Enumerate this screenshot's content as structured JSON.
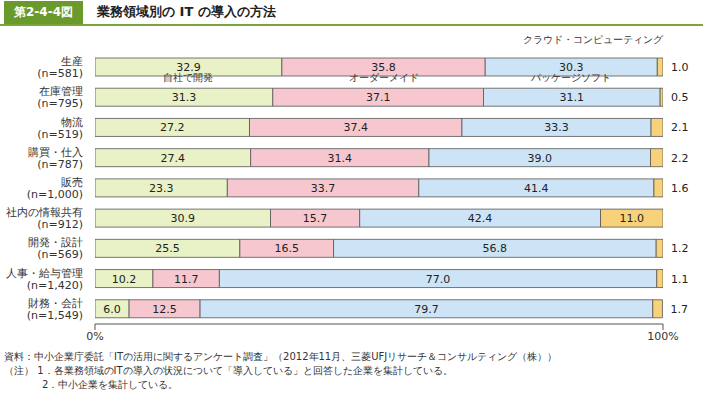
{
  "chart_data": {
    "type": "bar",
    "orientation": "horizontal",
    "stacked": true,
    "data_labels": true,
    "figure_number": "第2-4-4図",
    "title": "業務領域別の IT の導入の方法",
    "categories": [
      "生産\n(n=581)",
      "在庫管理\n(n=795)",
      "物流\n(n=519)",
      "購買・仕入\n(n=787)",
      "販売\n(n=1,000)",
      "社内の情報共有\n(n=912)",
      "開発・設計\n(n=569)",
      "人事・給与管理\n(n=1,420)",
      "財務・会計\n(n=1,549)"
    ],
    "series": [
      {
        "name": "自社で開発",
        "color": "#e9f1c6",
        "values": [
          32.9,
          31.3,
          27.2,
          27.4,
          23.3,
          30.9,
          25.5,
          10.2,
          6.0
        ],
        "value_labels": [
          "32.9",
          "31.3",
          "27.2",
          "27.4",
          "23.3",
          "30.9",
          "25.5",
          "10.2",
          "6.0"
        ]
      },
      {
        "name": "オーダーメイド",
        "color": "#f6c7ce",
        "values": [
          35.8,
          37.1,
          37.4,
          31.4,
          33.7,
          15.7,
          16.5,
          11.7,
          12.5
        ],
        "value_labels": [
          "35.8",
          "37.1",
          "37.4",
          "31.4",
          "33.7",
          "15.7",
          "16.5",
          "11.7",
          "12.5"
        ]
      },
      {
        "name": "パッケージソフト",
        "color": "#cde4f6",
        "values": [
          30.3,
          31.1,
          33.3,
          39.0,
          41.4,
          42.4,
          56.8,
          77.0,
          79.7
        ],
        "value_labels": [
          "30.3",
          "31.1",
          "33.3",
          "39.0",
          "41.4",
          "42.4",
          "56.8",
          "77.0",
          "79.7"
        ]
      },
      {
        "name": "クラウド・コンピューティング",
        "color": "#f8d27a",
        "values": [
          1.0,
          0.5,
          2.1,
          2.2,
          1.6,
          11.0,
          1.2,
          1.1,
          1.7
        ],
        "value_labels": [
          "1.0",
          "0.5",
          "2.1",
          "2.2",
          "1.6",
          "11.0",
          "1.2",
          "1.1",
          "1.7"
        ]
      }
    ],
    "xlim": [
      0,
      100
    ],
    "xticks": [
      {
        "value": 0,
        "label": "0%"
      },
      {
        "value": 100,
        "label": "100%"
      }
    ],
    "source": "資料：中小企業庁委託「ITの活用に関するアンケート調査」（2012年11月、三菱UFJリサーチ＆コンサルティング（株））",
    "notes": [
      "（注） 1．各業務領域のITの導入の状況について「導入している」と回答した企業を集計している。",
      "2．中小企業を集計している。"
    ]
  }
}
